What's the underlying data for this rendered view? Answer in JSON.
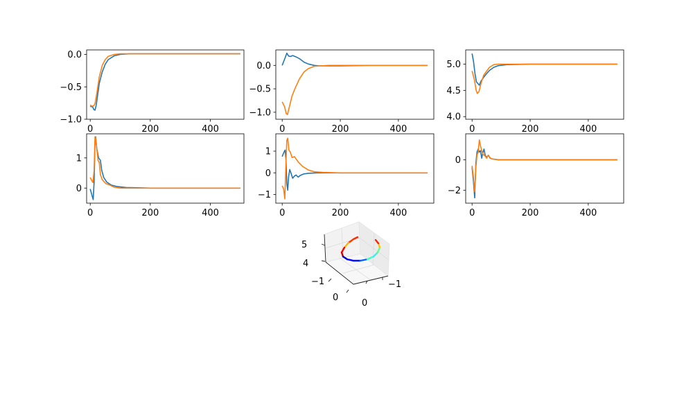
{
  "colors": {
    "series1": "#1f77b4",
    "series2": "#ff7f0e",
    "axes": "#000000",
    "background": "#ffffff"
  },
  "chart_data": [
    {
      "type": "line",
      "grid": false,
      "xlim": [
        -12,
        512
      ],
      "ylim": [
        -1.0,
        0.07
      ],
      "xticks": [
        0,
        200,
        400
      ],
      "yticks": [
        -1.0,
        -0.5,
        0.0
      ],
      "xtick_labels": [
        "0",
        "200",
        "400"
      ],
      "ytick_labels": [
        "−1.0",
        "−0.5",
        "0.0"
      ],
      "series": [
        {
          "color": "#1f77b4",
          "points": [
            [
              0,
              -0.8
            ],
            [
              8,
              -0.81
            ],
            [
              12,
              -0.85
            ],
            [
              16,
              -0.86
            ],
            [
              20,
              -0.78
            ],
            [
              30,
              -0.45
            ],
            [
              40,
              -0.27
            ],
            [
              50,
              -0.15
            ],
            [
              60,
              -0.08
            ],
            [
              80,
              -0.02
            ],
            [
              100,
              0.0
            ],
            [
              130,
              0.01
            ],
            [
              160,
              0.01
            ],
            [
              200,
              0.01
            ],
            [
              300,
              0.01
            ],
            [
              400,
              0.01
            ],
            [
              500,
              0.01
            ]
          ]
        },
        {
          "color": "#ff7f0e",
          "points": [
            [
              0,
              -0.78
            ],
            [
              6,
              -0.8
            ],
            [
              12,
              -0.79
            ],
            [
              16,
              -0.76
            ],
            [
              22,
              -0.6
            ],
            [
              30,
              -0.35
            ],
            [
              40,
              -0.17
            ],
            [
              50,
              -0.08
            ],
            [
              60,
              -0.03
            ],
            [
              80,
              0.0
            ],
            [
              100,
              0.01
            ],
            [
              150,
              0.01
            ],
            [
              200,
              0.01
            ],
            [
              300,
              0.01
            ],
            [
              400,
              0.01
            ],
            [
              500,
              0.01
            ]
          ]
        }
      ]
    },
    {
      "type": "line",
      "grid": false,
      "xlim": [
        -22,
        522
      ],
      "ylim": [
        -1.15,
        0.33
      ],
      "xticks": [
        0,
        200,
        400
      ],
      "yticks": [
        -1.0,
        -0.5,
        0.0
      ],
      "xtick_labels": [
        "0",
        "200",
        "400"
      ],
      "ytick_labels": [
        "−1.0",
        "−0.5",
        "0.0"
      ],
      "series": [
        {
          "color": "#1f77b4",
          "points": [
            [
              0,
              0.0
            ],
            [
              8,
              0.13
            ],
            [
              16,
              0.26
            ],
            [
              22,
              0.2
            ],
            [
              28,
              0.19
            ],
            [
              36,
              0.21
            ],
            [
              48,
              0.18
            ],
            [
              60,
              0.14
            ],
            [
              75,
              0.07
            ],
            [
              90,
              0.03
            ],
            [
              110,
              0.0
            ],
            [
              130,
              -0.01
            ],
            [
              160,
              -0.01
            ],
            [
              200,
              -0.01
            ],
            [
              300,
              0.0
            ],
            [
              400,
              0.0
            ],
            [
              500,
              0.0
            ]
          ]
        },
        {
          "color": "#ff7f0e",
          "points": [
            [
              0,
              -0.78
            ],
            [
              8,
              -0.88
            ],
            [
              14,
              -1.03
            ],
            [
              18,
              -1.05
            ],
            [
              24,
              -0.9
            ],
            [
              34,
              -0.65
            ],
            [
              45,
              -0.48
            ],
            [
              60,
              -0.28
            ],
            [
              75,
              -0.14
            ],
            [
              90,
              -0.07
            ],
            [
              110,
              -0.02
            ],
            [
              130,
              -0.01
            ],
            [
              160,
              0.0
            ],
            [
              200,
              0.0
            ],
            [
              300,
              0.0
            ],
            [
              400,
              0.0
            ],
            [
              500,
              0.0
            ]
          ]
        }
      ]
    },
    {
      "type": "line",
      "grid": false,
      "xlim": [
        -22,
        522
      ],
      "ylim": [
        3.95,
        5.27
      ],
      "xticks": [
        0,
        200,
        400
      ],
      "yticks": [
        4.0,
        4.5,
        5.0
      ],
      "xtick_labels": [
        "0",
        "200",
        "400"
      ],
      "ytick_labels": [
        "4.0",
        "4.5",
        "5.0"
      ],
      "series": [
        {
          "color": "#1f77b4",
          "points": [
            [
              0,
              5.2
            ],
            [
              5,
              5.05
            ],
            [
              10,
              4.82
            ],
            [
              15,
              4.66
            ],
            [
              20,
              4.63
            ],
            [
              25,
              4.6
            ],
            [
              30,
              4.67
            ],
            [
              40,
              4.75
            ],
            [
              50,
              4.82
            ],
            [
              60,
              4.88
            ],
            [
              75,
              4.94
            ],
            [
              90,
              4.97
            ],
            [
              120,
              4.99
            ],
            [
              200,
              5.0
            ],
            [
              300,
              5.0
            ],
            [
              400,
              5.0
            ],
            [
              500,
              5.0
            ]
          ]
        },
        {
          "color": "#ff7f0e",
          "points": [
            [
              0,
              4.87
            ],
            [
              8,
              4.7
            ],
            [
              14,
              4.5
            ],
            [
              18,
              4.44
            ],
            [
              24,
              4.48
            ],
            [
              30,
              4.62
            ],
            [
              40,
              4.79
            ],
            [
              52,
              4.88
            ],
            [
              60,
              4.94
            ],
            [
              75,
              4.99
            ],
            [
              90,
              5.0
            ],
            [
              120,
              5.0
            ],
            [
              200,
              5.0
            ],
            [
              300,
              5.0
            ],
            [
              400,
              5.0
            ],
            [
              500,
              5.0
            ]
          ]
        }
      ]
    },
    {
      "type": "line",
      "grid": false,
      "xlim": [
        -12,
        512
      ],
      "ylim": [
        -0.5,
        1.8
      ],
      "xticks": [
        0,
        200,
        400
      ],
      "yticks": [
        0,
        1
      ],
      "xtick_labels": [
        "0",
        "200",
        "400"
      ],
      "ytick_labels": [
        "0",
        "1"
      ],
      "series": [
        {
          "color": "#1f77b4",
          "points": [
            [
              0,
              -0.03
            ],
            [
              6,
              -0.25
            ],
            [
              10,
              -0.38
            ],
            [
              13,
              0.2
            ],
            [
              16,
              1.55
            ],
            [
              18,
              1.7
            ],
            [
              22,
              1.3
            ],
            [
              28,
              1.0
            ],
            [
              34,
              0.92
            ],
            [
              38,
              0.6
            ],
            [
              45,
              0.35
            ],
            [
              55,
              0.2
            ],
            [
              70,
              0.1
            ],
            [
              90,
              0.05
            ],
            [
              120,
              0.02
            ],
            [
              160,
              0.01
            ],
            [
              200,
              0.0
            ],
            [
              300,
              0.0
            ],
            [
              400,
              0.0
            ],
            [
              500,
              0.0
            ]
          ]
        },
        {
          "color": "#ff7f0e",
          "points": [
            [
              0,
              0.35
            ],
            [
              5,
              0.25
            ],
            [
              9,
              0.18
            ],
            [
              13,
              0.6
            ],
            [
              16,
              1.7
            ],
            [
              18,
              1.65
            ],
            [
              22,
              1.3
            ],
            [
              26,
              0.92
            ],
            [
              30,
              0.85
            ],
            [
              34,
              0.45
            ],
            [
              40,
              0.28
            ],
            [
              52,
              0.15
            ],
            [
              65,
              0.1
            ],
            [
              80,
              0.03
            ],
            [
              100,
              0.0
            ],
            [
              140,
              0.0
            ],
            [
              200,
              0.0
            ],
            [
              300,
              0.0
            ],
            [
              400,
              0.0
            ],
            [
              500,
              0.0
            ]
          ]
        }
      ]
    },
    {
      "type": "line",
      "grid": false,
      "xlim": [
        -22,
        522
      ],
      "ylim": [
        -1.4,
        1.8
      ],
      "xticks": [
        0,
        200,
        400
      ],
      "yticks": [
        -1,
        0,
        1
      ],
      "xtick_labels": [
        "0",
        "200",
        "400"
      ],
      "ytick_labels": [
        "−1",
        "0",
        "1"
      ],
      "series": [
        {
          "color": "#1f77b4",
          "points": [
            [
              0,
              0.75
            ],
            [
              6,
              0.95
            ],
            [
              10,
              1.05
            ],
            [
              13,
              0.6
            ],
            [
              16,
              -0.5
            ],
            [
              19,
              -0.8
            ],
            [
              22,
              -0.2
            ],
            [
              26,
              0.15
            ],
            [
              30,
              0.0
            ],
            [
              36,
              -0.25
            ],
            [
              42,
              -0.15
            ],
            [
              48,
              -0.1
            ],
            [
              55,
              -0.2
            ],
            [
              62,
              -0.12
            ],
            [
              75,
              -0.05
            ],
            [
              90,
              -0.02
            ],
            [
              120,
              0.0
            ],
            [
              200,
              0.0
            ],
            [
              300,
              0.0
            ],
            [
              400,
              0.0
            ],
            [
              500,
              0.0
            ]
          ]
        },
        {
          "color": "#ff7f0e",
          "points": [
            [
              0,
              -0.6
            ],
            [
              5,
              -0.75
            ],
            [
              9,
              -1.2
            ],
            [
              13,
              0.5
            ],
            [
              16,
              1.5
            ],
            [
              19,
              1.6
            ],
            [
              23,
              1.05
            ],
            [
              28,
              0.95
            ],
            [
              34,
              0.7
            ],
            [
              42,
              0.75
            ],
            [
              55,
              0.5
            ],
            [
              70,
              0.3
            ],
            [
              90,
              0.13
            ],
            [
              110,
              0.05
            ],
            [
              140,
              0.02
            ],
            [
              200,
              0.0
            ],
            [
              300,
              0.0
            ],
            [
              400,
              0.0
            ],
            [
              500,
              0.0
            ]
          ]
        }
      ]
    },
    {
      "type": "line",
      "grid": false,
      "xlim": [
        -22,
        522
      ],
      "ylim": [
        -2.85,
        1.7
      ],
      "xticks": [
        0,
        200,
        400
      ],
      "yticks": [
        -2,
        0
      ],
      "xtick_labels": [
        "0",
        "200",
        "400"
      ],
      "ytick_labels": [
        "−2",
        "0"
      ],
      "series": [
        {
          "color": "#1f77b4",
          "points": [
            [
              0,
              -0.5
            ],
            [
              5,
              -1.5
            ],
            [
              9,
              -2.5
            ],
            [
              13,
              -0.2
            ],
            [
              17,
              0.5
            ],
            [
              21,
              0.7
            ],
            [
              25,
              0.5
            ],
            [
              29,
              0.6
            ],
            [
              33,
              0.1
            ],
            [
              37,
              0.45
            ],
            [
              41,
              0.7
            ],
            [
              45,
              0.3
            ],
            [
              50,
              0.15
            ],
            [
              56,
              0.3
            ],
            [
              62,
              0.1
            ],
            [
              70,
              0.05
            ],
            [
              90,
              0.0
            ],
            [
              120,
              0.0
            ],
            [
              200,
              0.0
            ],
            [
              300,
              0.0
            ],
            [
              400,
              0.0
            ],
            [
              500,
              0.0
            ]
          ]
        },
        {
          "color": "#ff7f0e",
          "points": [
            [
              0,
              -0.4
            ],
            [
              5,
              -1.2
            ],
            [
              9,
              -2.1
            ],
            [
              13,
              -0.5
            ],
            [
              17,
              0.3
            ],
            [
              21,
              0.5
            ],
            [
              25,
              1.3
            ],
            [
              29,
              0.9
            ],
            [
              33,
              0.6
            ],
            [
              37,
              0.4
            ],
            [
              41,
              0.3
            ],
            [
              45,
              0.25
            ],
            [
              50,
              0.1
            ],
            [
              56,
              0.3
            ],
            [
              62,
              0.12
            ],
            [
              70,
              0.05
            ],
            [
              90,
              0.0
            ],
            [
              120,
              0.0
            ],
            [
              200,
              0.0
            ],
            [
              300,
              0.0
            ],
            [
              400,
              0.0
            ],
            [
              500,
              0.0
            ]
          ]
        }
      ]
    },
    {
      "type": "line3d",
      "grid": true,
      "colormap": "jet",
      "tick_labels": {
        "x": [
          "0",
          "−1"
        ],
        "y": [
          "−1",
          "0"
        ],
        "z": [
          "4",
          "5"
        ]
      }
    }
  ]
}
